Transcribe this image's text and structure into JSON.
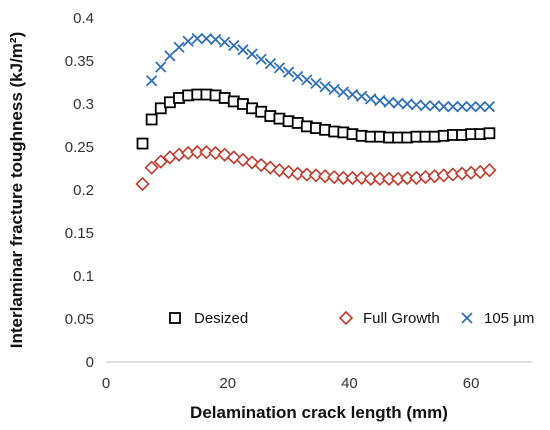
{
  "chart_data": {
    "type": "scatter",
    "title": "",
    "xlabel": "Delamination crack length (mm)",
    "ylabel": "Interlaminar fracture toughness (kJ/m²)",
    "xlim": [
      0,
      70
    ],
    "ylim": [
      0,
      0.4
    ],
    "x_ticks": [
      "0",
      "20",
      "40",
      "60"
    ],
    "y_ticks": [
      "0",
      "0.05",
      "0.1",
      "0.15",
      "0.2",
      "0.25",
      "0.3",
      "0.35",
      "0.4"
    ],
    "grid": false,
    "legend_position": "bottom, inside plot",
    "series": [
      {
        "name": "Desized",
        "marker": "square",
        "color": "#000000",
        "x": [
          6.0,
          7.5,
          9.0,
          10.5,
          12.0,
          13.5,
          15.0,
          16.5,
          18.0,
          19.5,
          21.0,
          22.5,
          24.0,
          25.5,
          27.0,
          28.5,
          30.0,
          31.5,
          33.0,
          34.5,
          36.0,
          37.5,
          39.0,
          40.5,
          42.0,
          43.5,
          45.0,
          46.5,
          48.0,
          49.5,
          51.0,
          52.5,
          54.0,
          55.5,
          57.0,
          58.5,
          60.0,
          61.5,
          63.0
        ],
        "y": [
          0.254,
          0.282,
          0.295,
          0.302,
          0.307,
          0.31,
          0.311,
          0.311,
          0.31,
          0.307,
          0.303,
          0.3,
          0.295,
          0.291,
          0.286,
          0.283,
          0.28,
          0.278,
          0.274,
          0.272,
          0.27,
          0.268,
          0.267,
          0.265,
          0.263,
          0.262,
          0.262,
          0.261,
          0.261,
          0.261,
          0.262,
          0.262,
          0.262,
          0.263,
          0.264,
          0.264,
          0.265,
          0.265,
          0.266
        ]
      },
      {
        "name": "Full Growth",
        "marker": "diamond",
        "color": "#c0392b",
        "x": [
          6.0,
          7.5,
          9.0,
          10.5,
          12.0,
          13.5,
          15.0,
          16.5,
          18.0,
          19.5,
          21.0,
          22.5,
          24.0,
          25.5,
          27.0,
          28.5,
          30.0,
          31.5,
          33.0,
          34.5,
          36.0,
          37.5,
          39.0,
          40.5,
          42.0,
          43.5,
          45.0,
          46.5,
          48.0,
          49.5,
          51.0,
          52.5,
          54.0,
          55.5,
          57.0,
          58.5,
          60.0,
          61.5,
          63.0
        ],
        "y": [
          0.207,
          0.226,
          0.233,
          0.238,
          0.241,
          0.243,
          0.244,
          0.244,
          0.243,
          0.241,
          0.238,
          0.235,
          0.232,
          0.229,
          0.226,
          0.223,
          0.221,
          0.219,
          0.218,
          0.217,
          0.216,
          0.215,
          0.214,
          0.214,
          0.214,
          0.213,
          0.213,
          0.213,
          0.213,
          0.214,
          0.214,
          0.215,
          0.216,
          0.217,
          0.218,
          0.219,
          0.22,
          0.221,
          0.223
        ]
      },
      {
        "name": "105 µm",
        "marker": "x",
        "color": "#2e6fb5",
        "x": [
          7.5,
          9.0,
          10.5,
          12.0,
          13.5,
          15.0,
          16.5,
          18.0,
          19.5,
          21.0,
          22.5,
          24.0,
          25.5,
          27.0,
          28.5,
          30.0,
          31.5,
          33.0,
          34.5,
          36.0,
          37.5,
          39.0,
          40.5,
          42.0,
          43.5,
          45.0,
          46.5,
          48.0,
          49.5,
          51.0,
          52.5,
          54.0,
          55.5,
          57.0,
          58.5,
          60.0,
          61.5,
          63.0
        ],
        "y": [
          0.327,
          0.343,
          0.356,
          0.366,
          0.373,
          0.376,
          0.376,
          0.375,
          0.372,
          0.368,
          0.363,
          0.358,
          0.352,
          0.347,
          0.342,
          0.337,
          0.332,
          0.328,
          0.324,
          0.32,
          0.317,
          0.314,
          0.311,
          0.309,
          0.306,
          0.304,
          0.302,
          0.301,
          0.3,
          0.299,
          0.298,
          0.298,
          0.297,
          0.297,
          0.297,
          0.297,
          0.297,
          0.297
        ]
      }
    ]
  }
}
